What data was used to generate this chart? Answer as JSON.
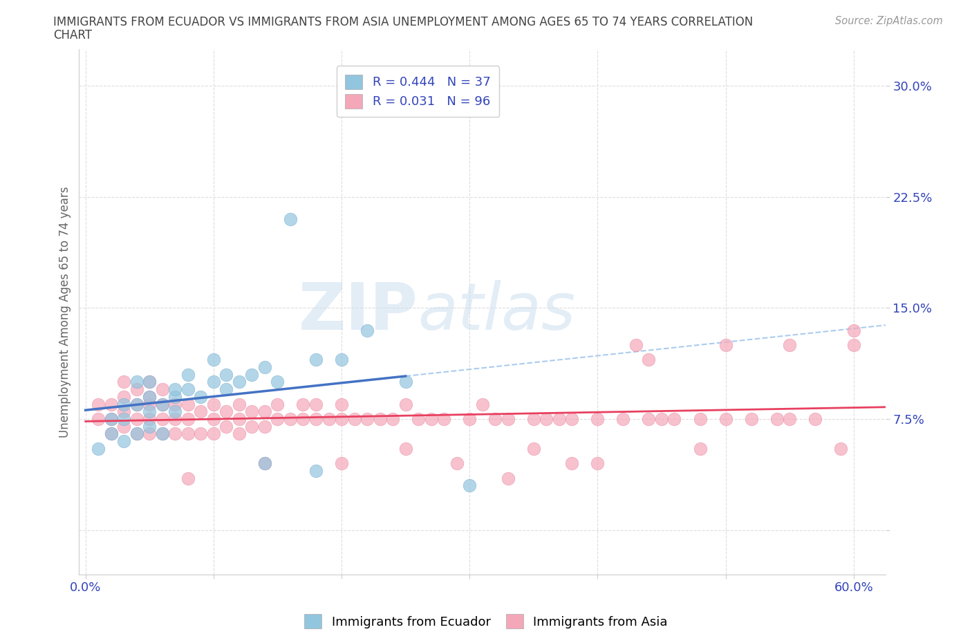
{
  "title_line1": "IMMIGRANTS FROM ECUADOR VS IMMIGRANTS FROM ASIA UNEMPLOYMENT AMONG AGES 65 TO 74 YEARS CORRELATION",
  "title_line2": "CHART",
  "source_text": "Source: ZipAtlas.com",
  "ylabel": "Unemployment Among Ages 65 to 74 years",
  "xlim": [
    -0.005,
    0.625
  ],
  "ylim": [
    -0.03,
    0.325
  ],
  "xticks": [
    0.0,
    0.1,
    0.2,
    0.3,
    0.4,
    0.5,
    0.6
  ],
  "xticklabels": [
    "0.0%",
    "",
    "",
    "",
    "",
    "",
    "60.0%"
  ],
  "yticks": [
    0.0,
    0.075,
    0.15,
    0.225,
    0.3
  ],
  "yticklabels": [
    "",
    "7.5%",
    "15.0%",
    "22.5%",
    "30.0%"
  ],
  "ecuador_color": "#92C5DE",
  "ecuador_edge_color": "#7BAFD4",
  "asia_color": "#F4A7B9",
  "asia_edge_color": "#E890A8",
  "ecuador_line_color": "#4472C4",
  "asia_line_color": "#E84060",
  "trend_line_color": "#AACCEE",
  "R_ecuador": 0.444,
  "N_ecuador": 37,
  "R_asia": 0.031,
  "N_asia": 96,
  "watermark_zip": "ZIP",
  "watermark_atlas": "atlas",
  "ecuador_scatter_x": [
    0.01,
    0.02,
    0.02,
    0.03,
    0.03,
    0.03,
    0.04,
    0.04,
    0.04,
    0.05,
    0.05,
    0.05,
    0.05,
    0.06,
    0.06,
    0.07,
    0.07,
    0.07,
    0.08,
    0.08,
    0.09,
    0.1,
    0.1,
    0.11,
    0.11,
    0.12,
    0.13,
    0.14,
    0.15,
    0.16,
    0.18,
    0.2,
    0.22,
    0.25,
    0.14,
    0.18,
    0.3
  ],
  "ecuador_scatter_y": [
    0.055,
    0.065,
    0.075,
    0.06,
    0.075,
    0.085,
    0.065,
    0.085,
    0.1,
    0.07,
    0.08,
    0.09,
    0.1,
    0.065,
    0.085,
    0.08,
    0.09,
    0.095,
    0.095,
    0.105,
    0.09,
    0.1,
    0.115,
    0.095,
    0.105,
    0.1,
    0.105,
    0.11,
    0.1,
    0.21,
    0.115,
    0.115,
    0.135,
    0.1,
    0.045,
    0.04,
    0.03
  ],
  "asia_scatter_x": [
    0.01,
    0.01,
    0.02,
    0.02,
    0.02,
    0.03,
    0.03,
    0.03,
    0.03,
    0.04,
    0.04,
    0.04,
    0.04,
    0.05,
    0.05,
    0.05,
    0.05,
    0.05,
    0.06,
    0.06,
    0.06,
    0.06,
    0.07,
    0.07,
    0.07,
    0.08,
    0.08,
    0.08,
    0.09,
    0.09,
    0.1,
    0.1,
    0.1,
    0.11,
    0.11,
    0.12,
    0.12,
    0.12,
    0.13,
    0.13,
    0.14,
    0.14,
    0.15,
    0.15,
    0.16,
    0.17,
    0.17,
    0.18,
    0.18,
    0.19,
    0.2,
    0.2,
    0.21,
    0.22,
    0.23,
    0.24,
    0.25,
    0.26,
    0.27,
    0.28,
    0.3,
    0.31,
    0.32,
    0.33,
    0.35,
    0.36,
    0.37,
    0.38,
    0.4,
    0.42,
    0.44,
    0.45,
    0.46,
    0.48,
    0.5,
    0.52,
    0.54,
    0.55,
    0.57,
    0.59,
    0.6,
    0.43,
    0.5,
    0.55,
    0.44,
    0.38,
    0.29,
    0.2,
    0.14,
    0.08,
    0.35,
    0.48,
    0.6,
    0.33,
    0.4,
    0.25
  ],
  "asia_scatter_y": [
    0.075,
    0.085,
    0.065,
    0.075,
    0.085,
    0.07,
    0.08,
    0.09,
    0.1,
    0.065,
    0.075,
    0.085,
    0.095,
    0.065,
    0.075,
    0.085,
    0.09,
    0.1,
    0.065,
    0.075,
    0.085,
    0.095,
    0.065,
    0.075,
    0.085,
    0.065,
    0.075,
    0.085,
    0.065,
    0.08,
    0.065,
    0.075,
    0.085,
    0.07,
    0.08,
    0.065,
    0.075,
    0.085,
    0.07,
    0.08,
    0.07,
    0.08,
    0.075,
    0.085,
    0.075,
    0.075,
    0.085,
    0.075,
    0.085,
    0.075,
    0.075,
    0.085,
    0.075,
    0.075,
    0.075,
    0.075,
    0.085,
    0.075,
    0.075,
    0.075,
    0.075,
    0.085,
    0.075,
    0.075,
    0.075,
    0.075,
    0.075,
    0.075,
    0.075,
    0.075,
    0.075,
    0.075,
    0.075,
    0.075,
    0.075,
    0.075,
    0.075,
    0.075,
    0.075,
    0.055,
    0.125,
    0.125,
    0.125,
    0.125,
    0.115,
    0.045,
    0.045,
    0.045,
    0.045,
    0.035,
    0.055,
    0.055,
    0.135,
    0.035,
    0.045,
    0.055
  ]
}
